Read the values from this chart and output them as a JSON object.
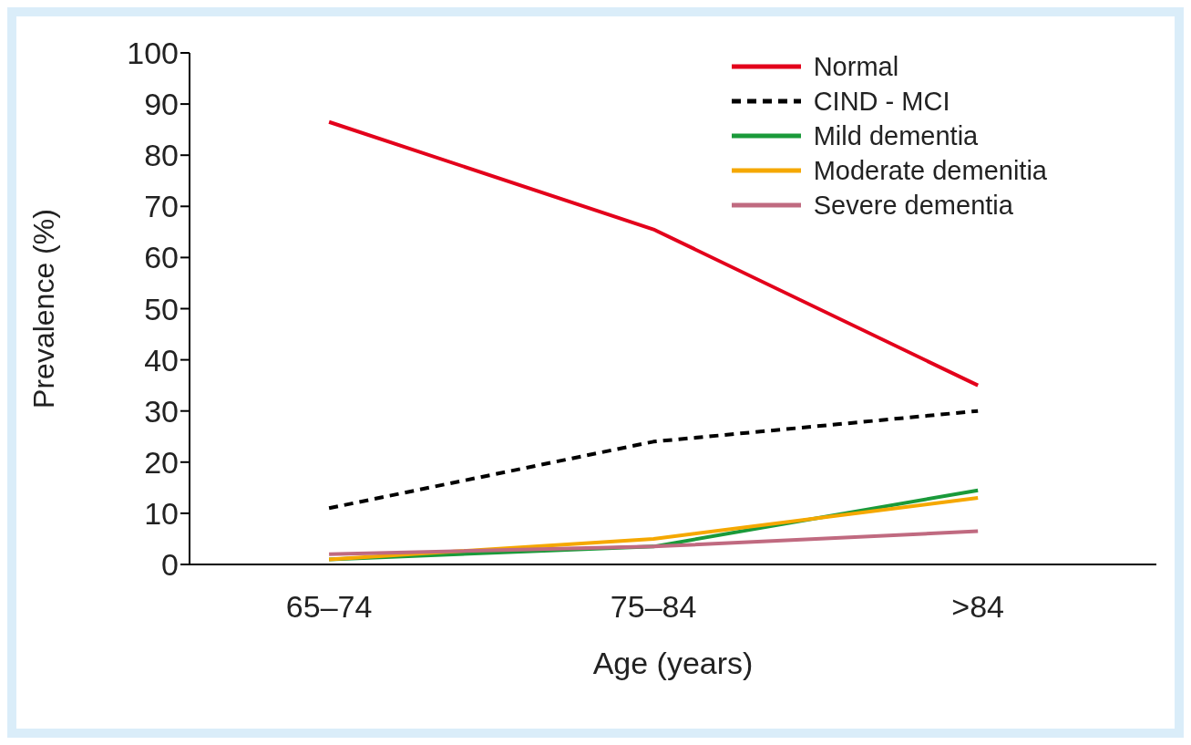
{
  "chart_data": {
    "type": "line",
    "xlabel": "Age (years)",
    "ylabel": "Prevalence (%)",
    "categories": [
      "65–74",
      "75–84",
      ">84"
    ],
    "ylim": [
      0,
      100
    ],
    "yticks": [
      0,
      10,
      20,
      30,
      40,
      50,
      60,
      70,
      80,
      90,
      100
    ],
    "legend": "top right",
    "marker": "none",
    "series": [
      {
        "name": "Normal",
        "color": "#e3001b",
        "line_style": "solid",
        "values": [
          86.5,
          65.5,
          35
        ]
      },
      {
        "name": "CIND - MCI",
        "color": "#000000",
        "line_style": "dashed",
        "values": [
          11,
          24,
          30
        ]
      },
      {
        "name": "Mild dementia",
        "color": "#1a9a3a",
        "line_style": "solid",
        "values": [
          1,
          3.5,
          14.5
        ]
      },
      {
        "name": "Moderate demenitia",
        "color": "#f5a800",
        "line_style": "solid",
        "values": [
          1,
          5,
          13
        ]
      },
      {
        "name": "Severe dementia",
        "color": "#c06a80",
        "line_style": "solid",
        "values": [
          2,
          3.5,
          6.5
        ]
      }
    ]
  }
}
